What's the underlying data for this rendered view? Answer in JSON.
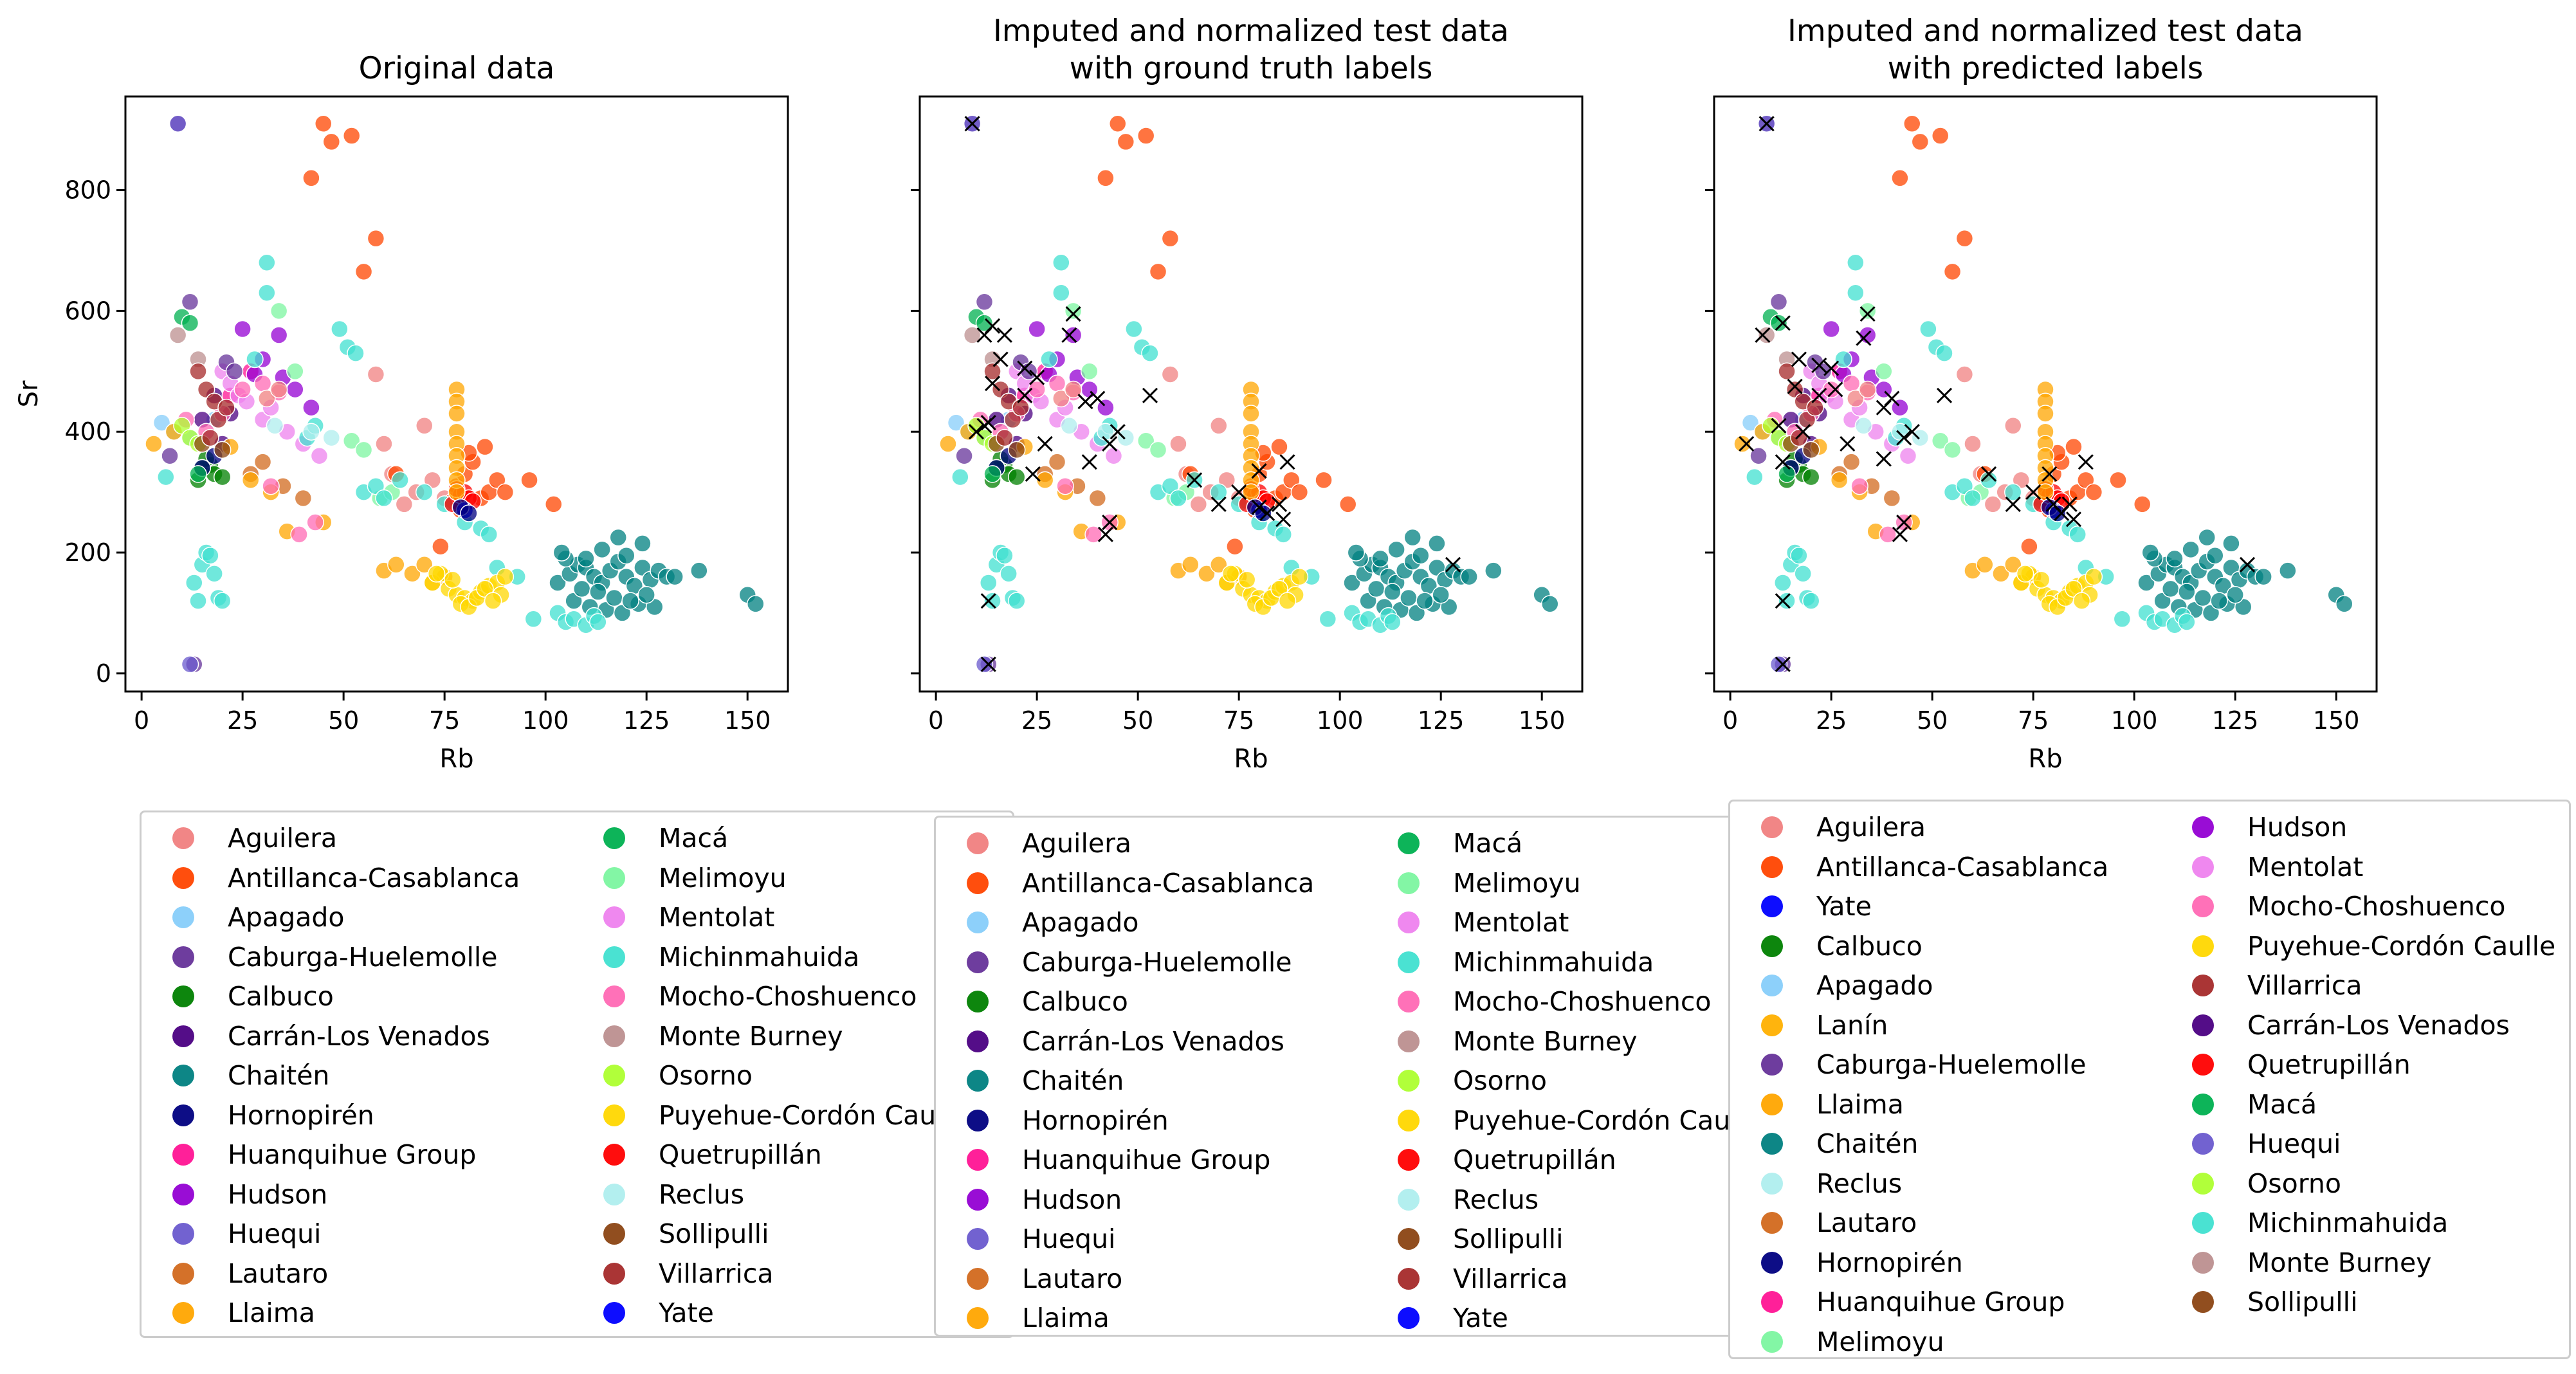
{
  "chart_data": [
    {
      "type": "scatter",
      "title": "Original data",
      "xlabel": "Rb",
      "ylabel": "Sr",
      "xlim": [
        -4,
        160
      ],
      "ylim": [
        -30,
        955
      ],
      "xticks": [
        0,
        25,
        50,
        75,
        100,
        125,
        150
      ],
      "yticks": [
        0,
        200,
        400,
        600,
        800
      ],
      "grid": false,
      "markers": false,
      "legend": {
        "placement": "below",
        "columns": [
          [
            "Aguilera",
            "Antillanca-Casablanca",
            "Apagado",
            "Caburga-Huelemolle",
            "Calbuco",
            "Carrán-Los Venados",
            "Chaitén",
            "Hornopirén",
            "Huanquihue Group",
            "Hudson",
            "Huequi",
            "Lautaro",
            "Llaima"
          ],
          [
            "Macá",
            "Melimoyu",
            "Mentolat",
            "Michinmahuida",
            "Mocho-Choshuenco",
            "Monte Burney",
            "Osorno",
            "Puyehue-Cordón Caulle",
            "Quetrupillán",
            "Reclus",
            "Sollipulli",
            "Villarrica",
            "Yate"
          ]
        ]
      }
    },
    {
      "type": "scatter",
      "title": "Imputed and normalized test data\nwith ground truth labels",
      "xlabel": "Rb",
      "ylabel": "",
      "xlim": [
        -4,
        160
      ],
      "ylim": [
        -30,
        955
      ],
      "xticks": [
        0,
        25,
        50,
        75,
        100,
        125,
        150
      ],
      "yticks": [
        0,
        200,
        400,
        600,
        800
      ],
      "grid": false,
      "markers": true,
      "legend": {
        "placement": "below",
        "columns": [
          [
            "Aguilera",
            "Antillanca-Casablanca",
            "Apagado",
            "Caburga-Huelemolle",
            "Calbuco",
            "Carrán-Los Venados",
            "Chaitén",
            "Hornopirén",
            "Huanquihue Group",
            "Hudson",
            "Huequi",
            "Lautaro",
            "Llaima"
          ],
          [
            "Macá",
            "Melimoyu",
            "Mentolat",
            "Michinmahuida",
            "Mocho-Choshuenco",
            "Monte Burney",
            "Osorno",
            "Puyehue-Cordón Caulle",
            "Quetrupillán",
            "Reclus",
            "Sollipulli",
            "Villarrica",
            "Yate"
          ]
        ]
      }
    },
    {
      "type": "scatter",
      "title": "Imputed and normalized test data\nwith predicted labels",
      "xlabel": "Rb",
      "ylabel": "",
      "xlim": [
        -4,
        160
      ],
      "ylim": [
        -30,
        955
      ],
      "xticks": [
        0,
        25,
        50,
        75,
        100,
        125,
        150
      ],
      "yticks": [
        0,
        200,
        400,
        600,
        800
      ],
      "grid": false,
      "markers": true,
      "legend": {
        "placement": "below",
        "columns": [
          [
            "Aguilera",
            "Antillanca-Casablanca",
            "Yate",
            "Calbuco",
            "Apagado",
            "Lanín",
            "Caburga-Huelemolle",
            "Llaima",
            "Chaitén",
            "Reclus",
            "Lautaro",
            "Hornopirén",
            "Huanquihue Group",
            "Melimoyu"
          ],
          [
            "Hudson",
            "Mentolat",
            "Mocho-Choshuenco",
            "Puyehue-Cordón Caulle",
            "Villarrica",
            "Carrán-Los Venados",
            "Quetrupillán",
            "Macá",
            "Huequi",
            "Osorno",
            "Michinmahuida",
            "Monte Burney",
            "Sollipulli"
          ]
        ]
      }
    }
  ],
  "colors": {
    "Aguilera": "#f08080",
    "Antillanca-Casablanca": "#ff4500",
    "Apagado": "#87cefa",
    "Caburga-Huelemolle": "#663399",
    "Calbuco": "#008000",
    "Carrán-Los Venados": "#4b0082",
    "Chaitén": "#008080",
    "Hornopirén": "#000080",
    "Huanquihue Group": "#ff1493",
    "Hudson": "#9400d3",
    "Huequi": "#6a5acd",
    "Lautaro": "#d2691e",
    "Llaima": "#ffa500",
    "Macá": "#00b050",
    "Melimoyu": "#7cf5a0",
    "Mentolat": "#ee82ee",
    "Michinmahuida": "#40e0d0",
    "Mocho-Choshuenco": "#ff69b4",
    "Monte Burney": "#bc8f8f",
    "Osorno": "#adff2f",
    "Puyehue-Cordón Caulle": "#ffd700",
    "Quetrupillán": "#ff0000",
    "Reclus": "#afeeee",
    "Sollipulli": "#8b4513",
    "Villarrica": "#a52a2a",
    "Yate": "#0000ff",
    "Lanín": "#ffb000"
  },
  "points": [
    {
      "v": "Aguilera",
      "x": [
        65,
        68,
        72,
        70,
        58,
        60,
        75,
        62
      ],
      "y": [
        280,
        300,
        320,
        410,
        495,
        380,
        290,
        330
      ]
    },
    {
      "v": "Antillanca-Casablanca",
      "x": [
        42,
        45,
        52,
        58,
        47,
        63,
        55,
        78,
        80,
        82,
        84,
        86,
        79,
        88,
        90,
        85,
        81,
        77,
        74,
        96,
        102
      ],
      "y": [
        820,
        910,
        890,
        720,
        880,
        330,
        665,
        310,
        330,
        350,
        290,
        300,
        270,
        320,
        300,
        375,
        365,
        285,
        210,
        320,
        280
      ]
    },
    {
      "v": "Apagado",
      "x": [
        5,
        8,
        12,
        18
      ],
      "y": [
        415,
        400,
        390,
        420
      ]
    },
    {
      "v": "Caburga-Huelemolle",
      "x": [
        9,
        12,
        7,
        13
      ],
      "y": [
        910,
        615,
        360,
        15
      ]
    },
    {
      "v": "Calbuco",
      "x": [
        14,
        17,
        18,
        20,
        16,
        15
      ],
      "y": [
        320,
        345,
        330,
        325,
        355,
        340
      ]
    },
    {
      "v": "Carrán-Los Venados",
      "x": [
        15,
        18,
        22,
        20
      ],
      "y": [
        420,
        460,
        430,
        380
      ]
    },
    {
      "v": "Chaitén",
      "x": [
        103,
        106,
        108,
        110,
        112,
        114,
        116,
        118,
        120,
        122,
        124,
        126,
        128,
        130,
        107,
        111,
        115,
        119,
        123,
        127,
        109,
        113,
        117,
        121,
        125,
        105,
        138,
        150,
        152,
        132,
        104,
        114,
        124,
        118,
        110,
        120
      ],
      "y": [
        150,
        165,
        180,
        175,
        160,
        150,
        170,
        185,
        160,
        145,
        175,
        155,
        170,
        160,
        120,
        110,
        105,
        100,
        115,
        110,
        140,
        135,
        125,
        120,
        130,
        190,
        170,
        130,
        115,
        160,
        200,
        205,
        215,
        225,
        190,
        195
      ]
    },
    {
      "v": "Hornopirén",
      "x": [
        15,
        18
      ],
      "y": [
        340,
        360
      ]
    },
    {
      "v": "Huanquihue Group",
      "x": [
        22,
        27
      ],
      "y": [
        460,
        500
      ]
    },
    {
      "v": "Hudson",
      "x": [
        25,
        30,
        35,
        38,
        42,
        34,
        28
      ],
      "y": [
        570,
        520,
        490,
        470,
        440,
        560,
        495
      ]
    },
    {
      "v": "Huequi",
      "x": [
        12,
        9
      ],
      "y": [
        15,
        910
      ]
    },
    {
      "v": "Lautaro",
      "x": [
        30,
        35,
        40,
        27
      ],
      "y": [
        350,
        310,
        290,
        330
      ]
    },
    {
      "v": "Llaima",
      "x": [
        3,
        8,
        22,
        27,
        32,
        36,
        45,
        60,
        63,
        67,
        70,
        72,
        75
      ],
      "y": [
        380,
        400,
        375,
        320,
        300,
        235,
        250,
        170,
        180,
        165,
        180,
        150,
        160
      ]
    },
    {
      "v": "Macá",
      "x": [
        10,
        12,
        14
      ],
      "y": [
        590,
        580,
        330
      ]
    },
    {
      "v": "Melimoyu",
      "x": [
        34,
        38,
        52,
        55,
        59,
        62
      ],
      "y": [
        600,
        500,
        385,
        370,
        290,
        300
      ]
    },
    {
      "v": "Mentolat",
      "x": [
        20,
        22,
        24,
        26,
        30,
        32,
        36,
        40,
        44
      ],
      "y": [
        500,
        480,
        460,
        450,
        420,
        440,
        400,
        380,
        360
      ]
    },
    {
      "v": "Michinmahuida",
      "x": [
        6,
        13,
        14,
        15,
        16,
        17,
        18,
        19,
        20,
        28,
        31,
        31,
        41,
        43,
        49,
        51,
        53,
        55,
        58,
        60,
        64,
        70,
        75,
        80,
        84,
        86,
        88,
        93,
        97,
        103,
        105,
        107,
        110,
        112,
        113
      ],
      "y": [
        325,
        150,
        120,
        180,
        200,
        195,
        165,
        125,
        120,
        520,
        680,
        630,
        390,
        410,
        570,
        540,
        530,
        300,
        310,
        290,
        320,
        300,
        280,
        250,
        240,
        230,
        175,
        160,
        90,
        100,
        85,
        90,
        80,
        95,
        85
      ]
    },
    {
      "v": "Mocho-Choshuenco",
      "x": [
        11,
        16,
        20,
        25,
        30,
        34,
        39,
        43,
        32
      ],
      "y": [
        420,
        400,
        430,
        470,
        480,
        465,
        230,
        250,
        310
      ]
    },
    {
      "v": "Monte Burney",
      "x": [
        9,
        14
      ],
      "y": [
        560,
        520
      ]
    },
    {
      "v": "Osorno",
      "x": [
        10,
        12,
        14
      ],
      "y": [
        410,
        390,
        380
      ]
    },
    {
      "v": "Puyehue-Cordón Caulle",
      "x": [
        72,
        74,
        76,
        78,
        80,
        82,
        84,
        86,
        88,
        90,
        79,
        81,
        83,
        85,
        77,
        89,
        73,
        87
      ],
      "y": [
        150,
        165,
        140,
        130,
        125,
        120,
        135,
        145,
        150,
        160,
        115,
        110,
        125,
        140,
        155,
        130,
        165,
        120
      ]
    },
    {
      "v": "Quetrupillán",
      "x": [
        77,
        79,
        80,
        81,
        82,
        78
      ],
      "y": [
        280,
        295,
        300,
        290,
        285,
        305
      ]
    },
    {
      "v": "Reclus",
      "x": [
        33,
        42,
        47
      ],
      "y": [
        410,
        400,
        390
      ]
    },
    {
      "v": "Sollipulli",
      "x": [
        15,
        20
      ],
      "y": [
        380,
        370
      ]
    },
    {
      "v": "Villarrica",
      "x": [
        14,
        16,
        18,
        19,
        21,
        17
      ],
      "y": [
        500,
        470,
        450,
        420,
        440,
        390
      ]
    },
    {
      "v": "Yate",
      "x": [
        80
      ],
      "y": [
        270
      ]
    }
  ],
  "extra": [
    {
      "v": "Llaima",
      "x": [
        78,
        78,
        78,
        78,
        78,
        78,
        78,
        78,
        78
      ],
      "y": [
        470,
        450,
        430,
        400,
        380,
        360,
        340,
        320,
        300
      ]
    },
    {
      "v": "Aguilera",
      "x": [
        31,
        34
      ],
      "y": [
        455,
        470
      ]
    },
    {
      "v": "Hornopirén",
      "x": [
        79,
        81
      ],
      "y": [
        275,
        265
      ]
    },
    {
      "v": "Caburga-Huelemolle",
      "x": [
        21,
        23
      ],
      "y": [
        515,
        500
      ]
    }
  ],
  "crosses_gt": [
    [
      9,
      910
    ],
    [
      12,
      560
    ],
    [
      14,
      575
    ],
    [
      17,
      560
    ],
    [
      16,
      520
    ],
    [
      14,
      480
    ],
    [
      22,
      505
    ],
    [
      25,
      490
    ],
    [
      13,
      415
    ],
    [
      12,
      410
    ],
    [
      10,
      400
    ],
    [
      22,
      460
    ],
    [
      24,
      330
    ],
    [
      33,
      560
    ],
    [
      34,
      595
    ],
    [
      37,
      450
    ],
    [
      40,
      455
    ],
    [
      38,
      350
    ],
    [
      43,
      380
    ],
    [
      45,
      400
    ],
    [
      43,
      250
    ],
    [
      42,
      230
    ],
    [
      53,
      460
    ],
    [
      64,
      320
    ],
    [
      70,
      280
    ],
    [
      75,
      300
    ],
    [
      80,
      275
    ],
    [
      82,
      265
    ],
    [
      85,
      280
    ],
    [
      86,
      255
    ],
    [
      87,
      350
    ],
    [
      80,
      335
    ],
    [
      13,
      120
    ],
    [
      13,
      15
    ],
    [
      128,
      180
    ],
    [
      27,
      380
    ]
  ],
  "crosses_pred": [
    [
      9,
      910
    ],
    [
      4,
      380
    ],
    [
      8,
      560
    ],
    [
      13,
      580
    ],
    [
      17,
      520
    ],
    [
      16,
      475
    ],
    [
      22,
      510
    ],
    [
      25,
      505
    ],
    [
      12,
      410
    ],
    [
      18,
      400
    ],
    [
      13,
      350
    ],
    [
      22,
      460
    ],
    [
      26,
      470
    ],
    [
      33,
      555
    ],
    [
      34,
      595
    ],
    [
      38,
      440
    ],
    [
      40,
      455
    ],
    [
      38,
      355
    ],
    [
      43,
      390
    ],
    [
      45,
      400
    ],
    [
      43,
      250
    ],
    [
      42,
      230
    ],
    [
      53,
      460
    ],
    [
      64,
      330
    ],
    [
      70,
      280
    ],
    [
      75,
      300
    ],
    [
      80,
      280
    ],
    [
      82,
      265
    ],
    [
      84,
      280
    ],
    [
      85,
      255
    ],
    [
      88,
      350
    ],
    [
      79,
      330
    ],
    [
      13,
      120
    ],
    [
      13,
      15
    ],
    [
      128,
      180
    ],
    [
      29,
      380
    ]
  ]
}
